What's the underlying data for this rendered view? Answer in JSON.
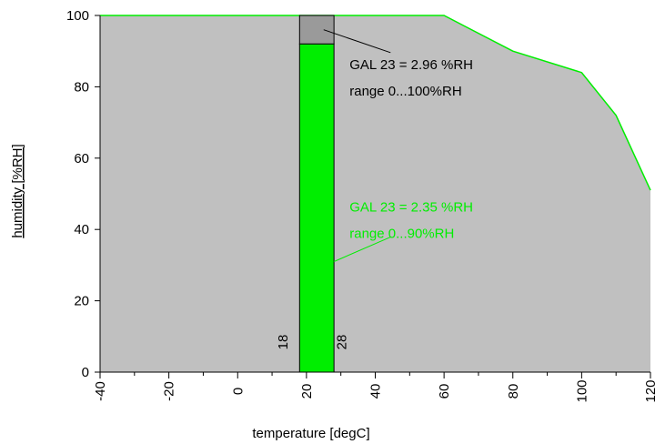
{
  "chart_data": {
    "type": "area",
    "xlabel": "temperature [degC]",
    "ylabel": "humidity [%RH]",
    "xlim": [
      -40,
      120
    ],
    "ylim": [
      0,
      100
    ],
    "x_ticks": [
      "-40",
      "-20",
      "0",
      "20",
      "40",
      "60",
      "80",
      "100",
      "120"
    ],
    "y_ticks": [
      "0",
      "20",
      "40",
      "60",
      "80",
      "100"
    ],
    "x_tick_values": [
      -40,
      -20,
      0,
      20,
      40,
      60,
      80,
      100,
      120
    ],
    "y_tick_values": [
      0,
      20,
      40,
      60,
      80,
      100
    ],
    "envelope": {
      "x": [
        -40,
        60,
        80,
        100,
        110,
        120
      ],
      "y": [
        100,
        100,
        90,
        84,
        72,
        51
      ],
      "fill_color": "#c0c0c0",
      "line_color": "#00ee00"
    },
    "bar": {
      "x_start": 18,
      "x_end": 28,
      "start_label": "18",
      "end_label": "28",
      "green_top": 92,
      "gray_top": 100,
      "green_color": "#00ee00",
      "gray_color": "#9a9a9a"
    },
    "annotations": [
      {
        "lines": [
          "GAL 23 = 2.96 %RH",
          "range 0...100%RH"
        ],
        "color": "#000000",
        "anchor": [
          25,
          96
        ],
        "text_at": [
          32,
          85
        ]
      },
      {
        "lines": [
          "GAL 23 = 2.35 %RH",
          "range 0...90%RH"
        ],
        "color": "#00ee00",
        "anchor": [
          28,
          31
        ],
        "text_at": [
          32,
          45
        ]
      }
    ]
  }
}
